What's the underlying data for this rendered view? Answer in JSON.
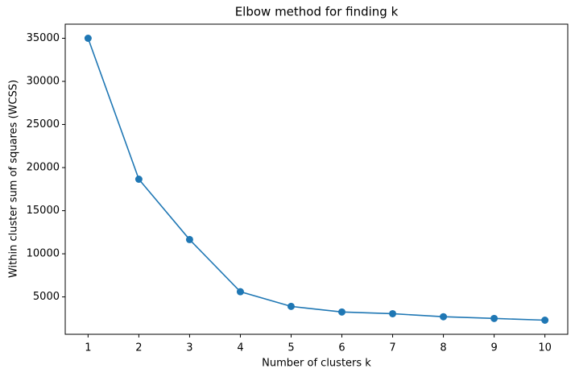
{
  "chart_data": {
    "type": "line",
    "title": "Elbow method for finding k",
    "x_label": "Number of clusters k",
    "y_label": "Within cluster sum of squares (WCSS)",
    "x": [
      1,
      2,
      3,
      4,
      5,
      6,
      7,
      8,
      9,
      10
    ],
    "series": [
      {
        "name": "WCSS",
        "color": "#1f77b4",
        "values": [
          35000,
          18650,
          11650,
          5600,
          3900,
          3250,
          3050,
          2700,
          2500,
          2300
        ]
      }
    ],
    "xlim": [
      0.55,
      10.45
    ],
    "ylim": [
      665,
      36635
    ],
    "xticks": [
      1,
      2,
      3,
      4,
      5,
      6,
      7,
      8,
      9,
      10
    ],
    "yticks": [
      5000,
      10000,
      15000,
      20000,
      25000,
      30000,
      35000
    ],
    "grid": false,
    "markers": true
  }
}
